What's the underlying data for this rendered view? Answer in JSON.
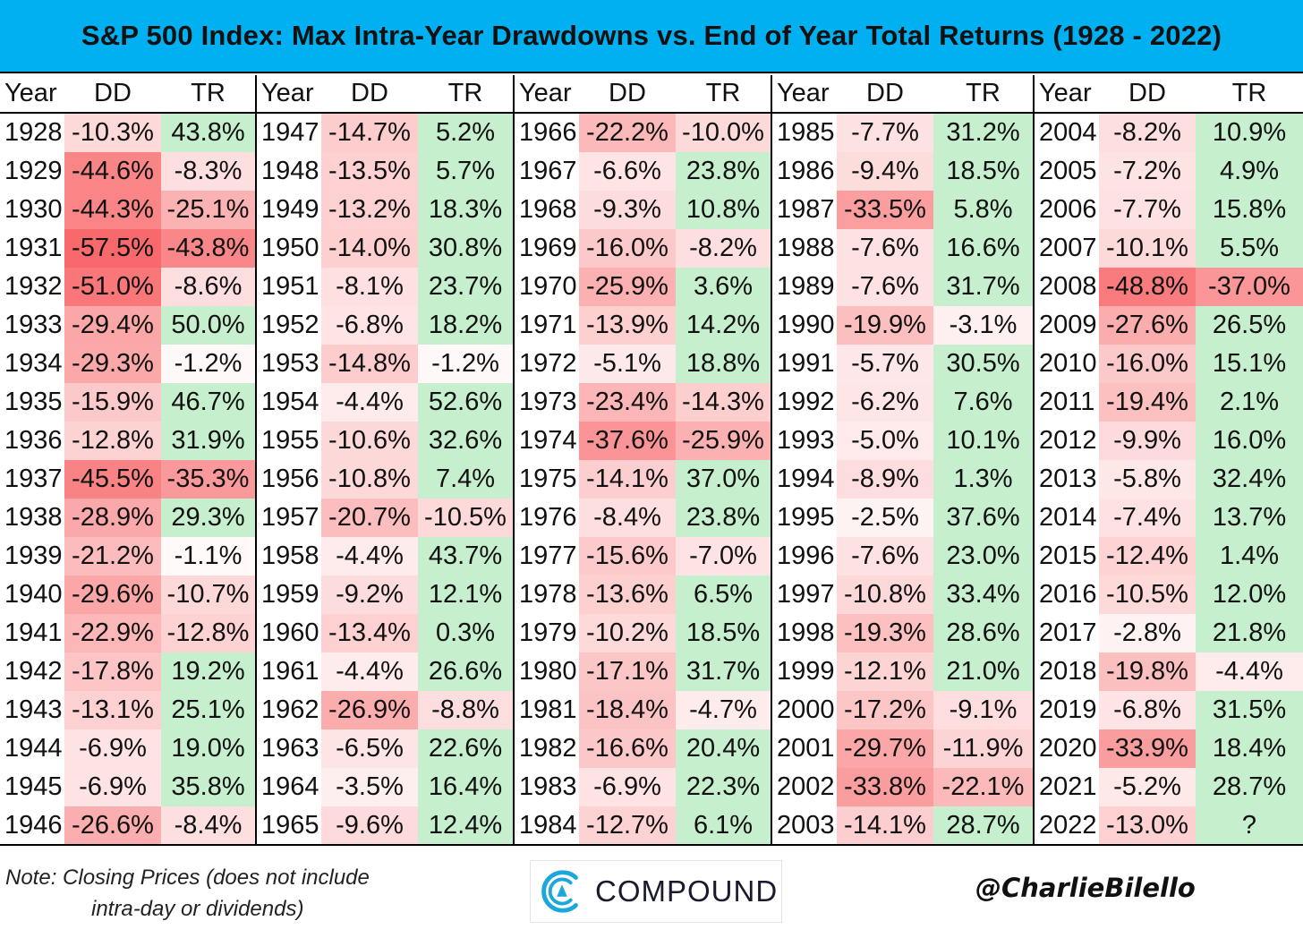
{
  "header": {
    "title": "S&P 500 Index: Max Intra-Year Drawdowns vs. End of Year Total Returns (1928 - 2022)"
  },
  "columns": {
    "year": "Year",
    "dd": "DD",
    "tr": "TR"
  },
  "colors": {
    "accent": "#00b0f0",
    "negative_strong": "#f8696b",
    "neutral": "#ffffff",
    "positive": "#c6efce"
  },
  "chart_data": {
    "type": "table",
    "title": "S&P 500 Index: Max Intra-Year Drawdowns vs. End of Year Total Returns (1928 - 2022)",
    "columns": [
      "Year",
      "DD",
      "TR"
    ],
    "blocks": [
      {
        "rows": [
          {
            "year": "1928",
            "dd": "-10.3%",
            "tr": "43.8%"
          },
          {
            "year": "1929",
            "dd": "-44.6%",
            "tr": "-8.3%"
          },
          {
            "year": "1930",
            "dd": "-44.3%",
            "tr": "-25.1%"
          },
          {
            "year": "1931",
            "dd": "-57.5%",
            "tr": "-43.8%"
          },
          {
            "year": "1932",
            "dd": "-51.0%",
            "tr": "-8.6%"
          },
          {
            "year": "1933",
            "dd": "-29.4%",
            "tr": "50.0%"
          },
          {
            "year": "1934",
            "dd": "-29.3%",
            "tr": "-1.2%"
          },
          {
            "year": "1935",
            "dd": "-15.9%",
            "tr": "46.7%"
          },
          {
            "year": "1936",
            "dd": "-12.8%",
            "tr": "31.9%"
          },
          {
            "year": "1937",
            "dd": "-45.5%",
            "tr": "-35.3%"
          },
          {
            "year": "1938",
            "dd": "-28.9%",
            "tr": "29.3%"
          },
          {
            "year": "1939",
            "dd": "-21.2%",
            "tr": "-1.1%"
          },
          {
            "year": "1940",
            "dd": "-29.6%",
            "tr": "-10.7%"
          },
          {
            "year": "1941",
            "dd": "-22.9%",
            "tr": "-12.8%"
          },
          {
            "year": "1942",
            "dd": "-17.8%",
            "tr": "19.2%"
          },
          {
            "year": "1943",
            "dd": "-13.1%",
            "tr": "25.1%"
          },
          {
            "year": "1944",
            "dd": "-6.9%",
            "tr": "19.0%"
          },
          {
            "year": "1945",
            "dd": "-6.9%",
            "tr": "35.8%"
          },
          {
            "year": "1946",
            "dd": "-26.6%",
            "tr": "-8.4%"
          }
        ]
      },
      {
        "rows": [
          {
            "year": "1947",
            "dd": "-14.7%",
            "tr": "5.2%"
          },
          {
            "year": "1948",
            "dd": "-13.5%",
            "tr": "5.7%"
          },
          {
            "year": "1949",
            "dd": "-13.2%",
            "tr": "18.3%"
          },
          {
            "year": "1950",
            "dd": "-14.0%",
            "tr": "30.8%"
          },
          {
            "year": "1951",
            "dd": "-8.1%",
            "tr": "23.7%"
          },
          {
            "year": "1952",
            "dd": "-6.8%",
            "tr": "18.2%"
          },
          {
            "year": "1953",
            "dd": "-14.8%",
            "tr": "-1.2%"
          },
          {
            "year": "1954",
            "dd": "-4.4%",
            "tr": "52.6%"
          },
          {
            "year": "1955",
            "dd": "-10.6%",
            "tr": "32.6%"
          },
          {
            "year": "1956",
            "dd": "-10.8%",
            "tr": "7.4%"
          },
          {
            "year": "1957",
            "dd": "-20.7%",
            "tr": "-10.5%"
          },
          {
            "year": "1958",
            "dd": "-4.4%",
            "tr": "43.7%"
          },
          {
            "year": "1959",
            "dd": "-9.2%",
            "tr": "12.1%"
          },
          {
            "year": "1960",
            "dd": "-13.4%",
            "tr": "0.3%"
          },
          {
            "year": "1961",
            "dd": "-4.4%",
            "tr": "26.6%"
          },
          {
            "year": "1962",
            "dd": "-26.9%",
            "tr": "-8.8%"
          },
          {
            "year": "1963",
            "dd": "-6.5%",
            "tr": "22.6%"
          },
          {
            "year": "1964",
            "dd": "-3.5%",
            "tr": "16.4%"
          },
          {
            "year": "1965",
            "dd": "-9.6%",
            "tr": "12.4%"
          }
        ]
      },
      {
        "rows": [
          {
            "year": "1966",
            "dd": "-22.2%",
            "tr": "-10.0%"
          },
          {
            "year": "1967",
            "dd": "-6.6%",
            "tr": "23.8%"
          },
          {
            "year": "1968",
            "dd": "-9.3%",
            "tr": "10.8%"
          },
          {
            "year": "1969",
            "dd": "-16.0%",
            "tr": "-8.2%"
          },
          {
            "year": "1970",
            "dd": "-25.9%",
            "tr": "3.6%"
          },
          {
            "year": "1971",
            "dd": "-13.9%",
            "tr": "14.2%"
          },
          {
            "year": "1972",
            "dd": "-5.1%",
            "tr": "18.8%"
          },
          {
            "year": "1973",
            "dd": "-23.4%",
            "tr": "-14.3%"
          },
          {
            "year": "1974",
            "dd": "-37.6%",
            "tr": "-25.9%"
          },
          {
            "year": "1975",
            "dd": "-14.1%",
            "tr": "37.0%"
          },
          {
            "year": "1976",
            "dd": "-8.4%",
            "tr": "23.8%"
          },
          {
            "year": "1977",
            "dd": "-15.6%",
            "tr": "-7.0%"
          },
          {
            "year": "1978",
            "dd": "-13.6%",
            "tr": "6.5%"
          },
          {
            "year": "1979",
            "dd": "-10.2%",
            "tr": "18.5%"
          },
          {
            "year": "1980",
            "dd": "-17.1%",
            "tr": "31.7%"
          },
          {
            "year": "1981",
            "dd": "-18.4%",
            "tr": "-4.7%"
          },
          {
            "year": "1982",
            "dd": "-16.6%",
            "tr": "20.4%"
          },
          {
            "year": "1983",
            "dd": "-6.9%",
            "tr": "22.3%"
          },
          {
            "year": "1984",
            "dd": "-12.7%",
            "tr": "6.1%"
          }
        ]
      },
      {
        "rows": [
          {
            "year": "1985",
            "dd": "-7.7%",
            "tr": "31.2%"
          },
          {
            "year": "1986",
            "dd": "-9.4%",
            "tr": "18.5%"
          },
          {
            "year": "1987",
            "dd": "-33.5%",
            "tr": "5.8%"
          },
          {
            "year": "1988",
            "dd": "-7.6%",
            "tr": "16.6%"
          },
          {
            "year": "1989",
            "dd": "-7.6%",
            "tr": "31.7%"
          },
          {
            "year": "1990",
            "dd": "-19.9%",
            "tr": "-3.1%"
          },
          {
            "year": "1991",
            "dd": "-5.7%",
            "tr": "30.5%"
          },
          {
            "year": "1992",
            "dd": "-6.2%",
            "tr": "7.6%"
          },
          {
            "year": "1993",
            "dd": "-5.0%",
            "tr": "10.1%"
          },
          {
            "year": "1994",
            "dd": "-8.9%",
            "tr": "1.3%"
          },
          {
            "year": "1995",
            "dd": "-2.5%",
            "tr": "37.6%"
          },
          {
            "year": "1996",
            "dd": "-7.6%",
            "tr": "23.0%"
          },
          {
            "year": "1997",
            "dd": "-10.8%",
            "tr": "33.4%"
          },
          {
            "year": "1998",
            "dd": "-19.3%",
            "tr": "28.6%"
          },
          {
            "year": "1999",
            "dd": "-12.1%",
            "tr": "21.0%"
          },
          {
            "year": "2000",
            "dd": "-17.2%",
            "tr": "-9.1%"
          },
          {
            "year": "2001",
            "dd": "-29.7%",
            "tr": "-11.9%"
          },
          {
            "year": "2002",
            "dd": "-33.8%",
            "tr": "-22.1%"
          },
          {
            "year": "2003",
            "dd": "-14.1%",
            "tr": "28.7%"
          }
        ]
      },
      {
        "rows": [
          {
            "year": "2004",
            "dd": "-8.2%",
            "tr": "10.9%"
          },
          {
            "year": "2005",
            "dd": "-7.2%",
            "tr": "4.9%"
          },
          {
            "year": "2006",
            "dd": "-7.7%",
            "tr": "15.8%"
          },
          {
            "year": "2007",
            "dd": "-10.1%",
            "tr": "5.5%"
          },
          {
            "year": "2008",
            "dd": "-48.8%",
            "tr": "-37.0%"
          },
          {
            "year": "2009",
            "dd": "-27.6%",
            "tr": "26.5%"
          },
          {
            "year": "2010",
            "dd": "-16.0%",
            "tr": "15.1%"
          },
          {
            "year": "2011",
            "dd": "-19.4%",
            "tr": "2.1%"
          },
          {
            "year": "2012",
            "dd": "-9.9%",
            "tr": "16.0%"
          },
          {
            "year": "2013",
            "dd": "-5.8%",
            "tr": "32.4%"
          },
          {
            "year": "2014",
            "dd": "-7.4%",
            "tr": "13.7%"
          },
          {
            "year": "2015",
            "dd": "-12.4%",
            "tr": "1.4%"
          },
          {
            "year": "2016",
            "dd": "-10.5%",
            "tr": "12.0%"
          },
          {
            "year": "2017",
            "dd": "-2.8%",
            "tr": "21.8%"
          },
          {
            "year": "2018",
            "dd": "-19.8%",
            "tr": "-4.4%"
          },
          {
            "year": "2019",
            "dd": "-6.8%",
            "tr": "31.5%"
          },
          {
            "year": "2020",
            "dd": "-33.9%",
            "tr": "18.4%"
          },
          {
            "year": "2021",
            "dd": "-5.2%",
            "tr": "28.7%"
          },
          {
            "year": "2022",
            "dd": "-13.0%",
            "tr": "?"
          }
        ]
      }
    ]
  },
  "footer": {
    "note_line1": "Note: Closing Prices (does not include",
    "note_line2": "intra-day or dividends)",
    "logo_text": "COMPOUND",
    "handle": "@CharlieBilello"
  }
}
